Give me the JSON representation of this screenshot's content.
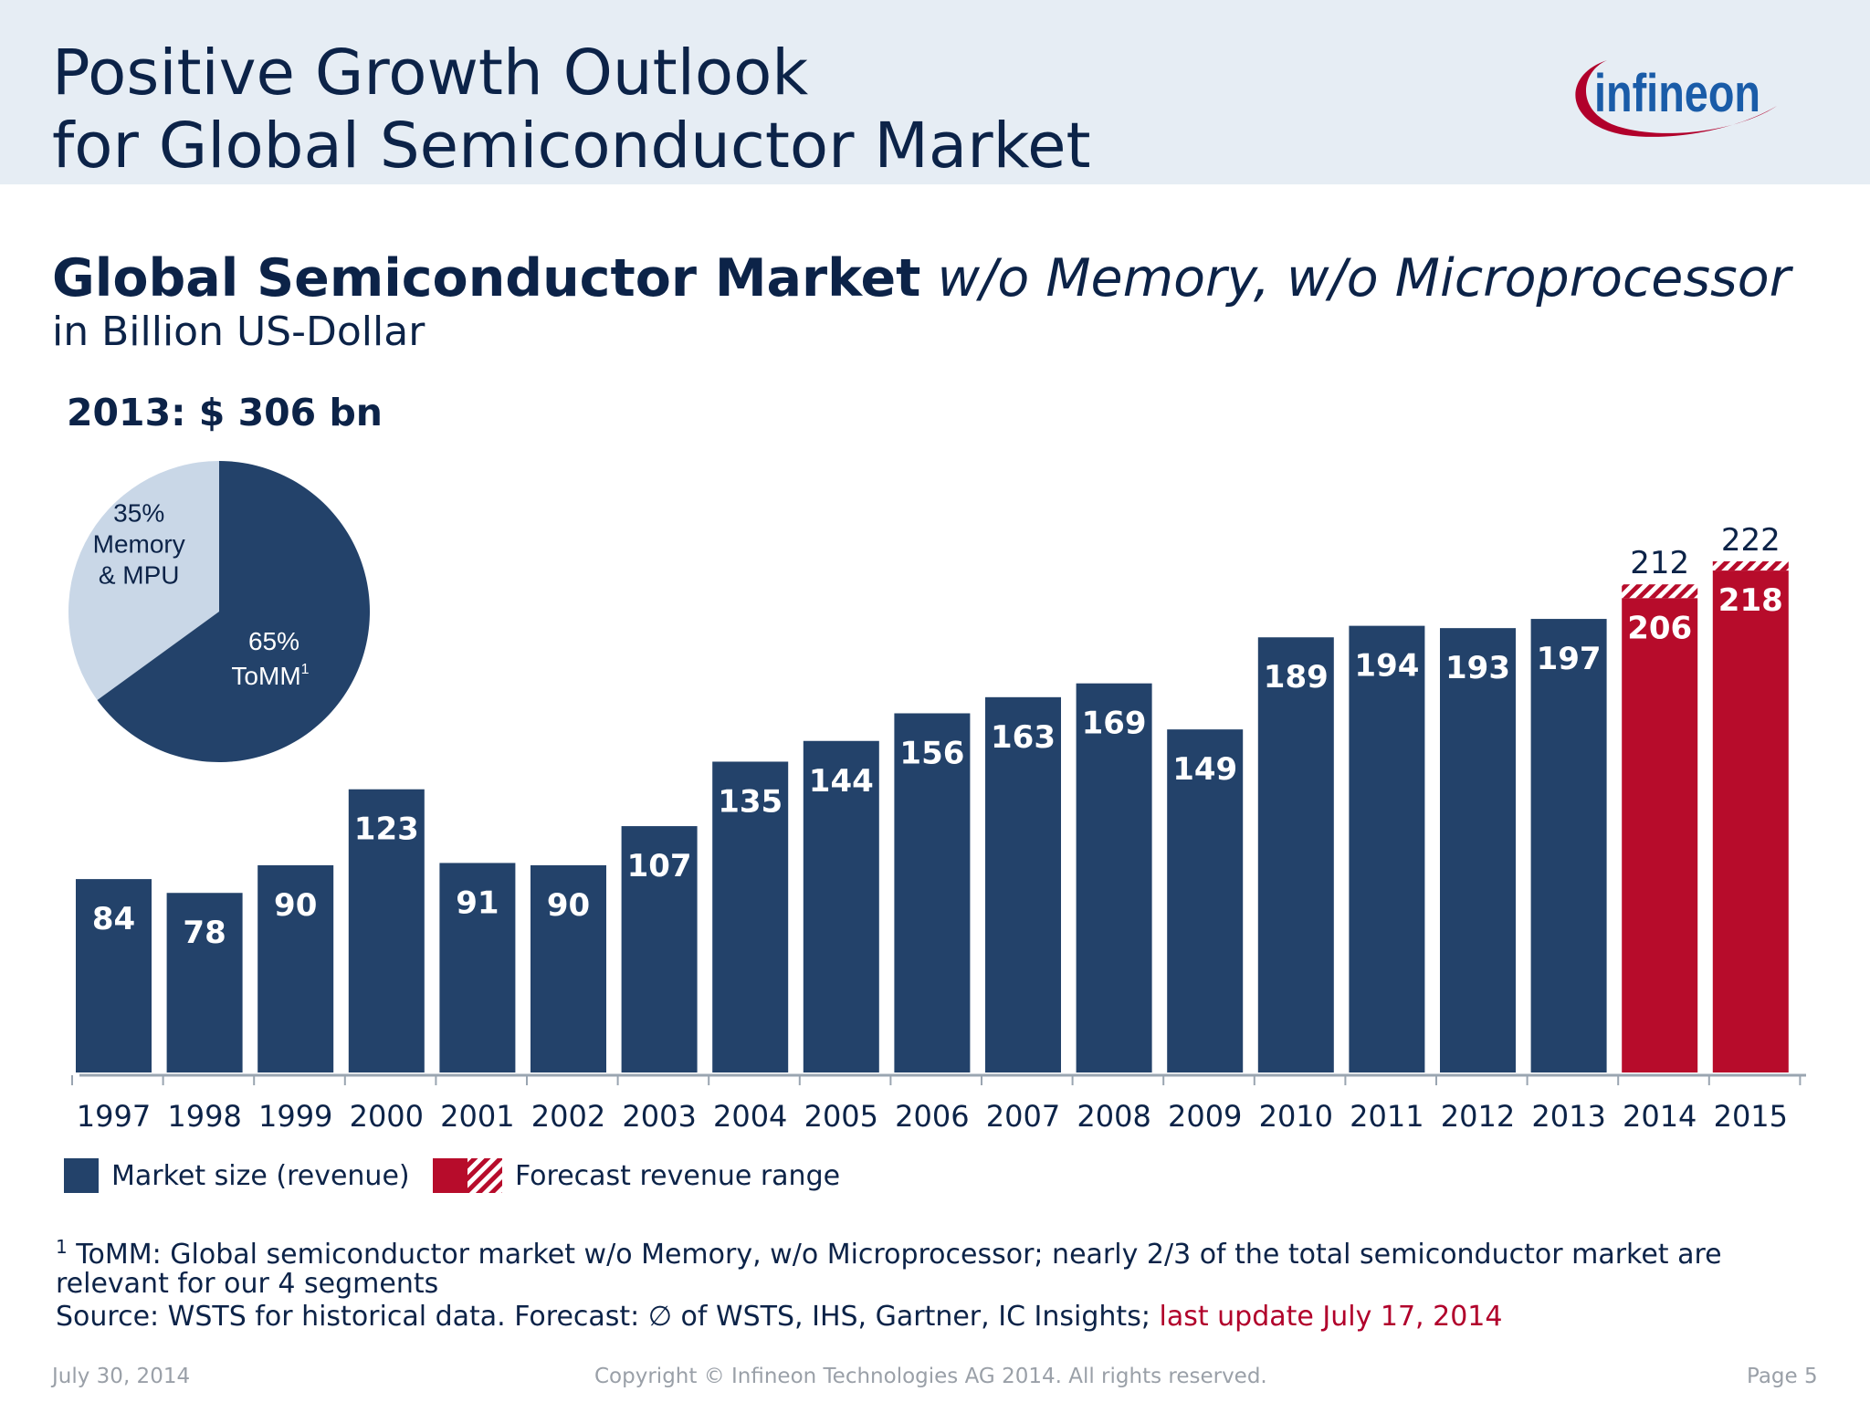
{
  "header": {
    "title_line1": "Positive Growth Outlook",
    "title_line2": "for Global Semiconductor Market",
    "logo_text": "infineon",
    "logo_color": "#1a5ca8",
    "swoosh_color": "#b1002b"
  },
  "subtitle": {
    "bold": "Global Semiconductor Market",
    "italic": "w/o Memory, w/o Microprocessor",
    "unit": "in Billion US-Dollar"
  },
  "pie": {
    "total_label": "2013: $ 306 bn",
    "slices": [
      {
        "name": "Memory & MPU",
        "value": 35,
        "pct_label": "35%",
        "lines": [
          "Memory",
          "& MPU"
        ],
        "color": "#c9d7e7"
      },
      {
        "name": "ToMM",
        "value": 65,
        "pct_label": "65%",
        "lines": [
          "ToMM"
        ],
        "sup": "1",
        "color": "#23426a"
      }
    ]
  },
  "chart_data": {
    "type": "bar",
    "title": "Global Semiconductor Market w/o Memory, w/o Microprocessor",
    "ylabel": "in Billion US-Dollar",
    "xlabel": "",
    "categories": [
      "1997",
      "1998",
      "1999",
      "2000",
      "2001",
      "2002",
      "2003",
      "2004",
      "2005",
      "2006",
      "2007",
      "2008",
      "2009",
      "2010",
      "2011",
      "2012",
      "2013",
      "2014",
      "2015"
    ],
    "series": [
      {
        "name": "Market size (revenue)",
        "values": [
          84,
          78,
          90,
          123,
          91,
          90,
          107,
          135,
          144,
          156,
          163,
          169,
          149,
          189,
          194,
          193,
          197,
          null,
          null
        ],
        "color": "#23426a"
      },
      {
        "name": "Forecast revenue",
        "values": [
          null,
          null,
          null,
          null,
          null,
          null,
          null,
          null,
          null,
          null,
          null,
          null,
          null,
          null,
          null,
          null,
          null,
          206,
          218
        ],
        "color": "#b70c2b"
      },
      {
        "name": "Forecast revenue range (upper)",
        "values": [
          null,
          null,
          null,
          null,
          null,
          null,
          null,
          null,
          null,
          null,
          null,
          null,
          null,
          null,
          null,
          null,
          null,
          212,
          222
        ],
        "color": "#b70c2b"
      }
    ],
    "ylim": [
      0,
      222
    ],
    "grid": false
  },
  "legend": {
    "market_label": "Market size (revenue)",
    "forecast_label": "Forecast revenue range"
  },
  "footnote": {
    "sup": "1",
    "line1": "ToMM: Global semiconductor market w/o Memory, w/o Microprocessor; nearly 2/3 of the total semiconductor market are",
    "line2": "relevant for our 4 segments",
    "source": "Source: WSTS for historical data. Forecast: ∅ of WSTS, IHS, Gartner, IC Insights;",
    "update": "last update July 17, 2014"
  },
  "bottom": {
    "date": "July 30, 2014",
    "copyright": "Copyright © Infineon Technologies AG 2014. All rights reserved.",
    "page": "Page 5"
  }
}
